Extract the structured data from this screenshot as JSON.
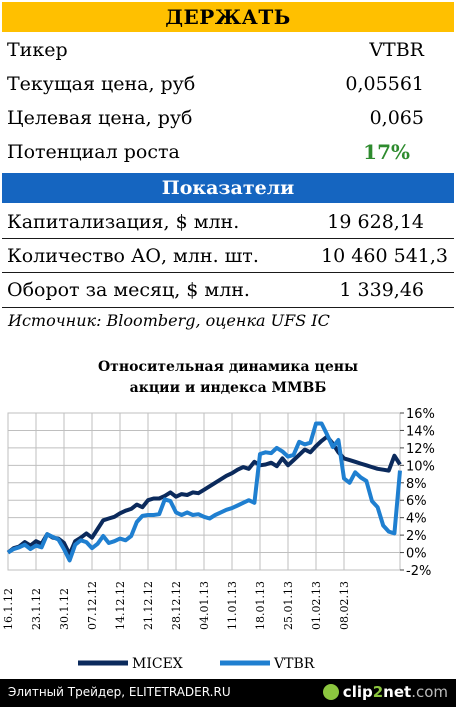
{
  "banner": "ДЕРЖАТЬ",
  "ticker_rows": [
    {
      "label": "Тикер",
      "value": "VTBR"
    },
    {
      "label": "Текущая цена, руб",
      "value": "0,05561"
    },
    {
      "label": "Целевая цена, руб",
      "value": "0,065"
    },
    {
      "label": "Потенциал роста",
      "value": "17%"
    }
  ],
  "indicators_header": "Показатели",
  "indicator_rows": [
    {
      "label": "Капитализация, $ млн.",
      "value": "19 628,14"
    },
    {
      "label": "Количество АО, млн. шт.",
      "value": "10 460 541,3"
    },
    {
      "label": "Оборот за месяц, $ млн.",
      "value": "1 339,46"
    }
  ],
  "source": "Источник: Bloomberg, оценка UFS IC",
  "colors": {
    "banner": "#ffc000",
    "header": "#1565c0",
    "potential": "#2e8b2e",
    "micex": "#0b2a5c",
    "vtbr": "#1f7fd0"
  },
  "chart_data": {
    "type": "line",
    "title_line1": "Относительная динамика цены",
    "title_line2": "акции и индекса ММВБ",
    "x_ticks": [
      "16.1.12",
      "23.1.12",
      "30.1.12",
      "07.12.12",
      "14.12.12",
      "21.12.12",
      "28.12.12",
      "04.01.13",
      "11.01.13",
      "18.01.13",
      "25.01.13",
      "01.02.13",
      "08.02.13"
    ],
    "ylim": [
      -2,
      16
    ],
    "y_ticks": [
      "16%",
      "14%",
      "12%",
      "10%",
      "8%",
      "6%",
      "4%",
      "2%",
      "0%",
      "-2%"
    ],
    "y_tick_values": [
      16,
      14,
      12,
      10,
      8,
      6,
      4,
      2,
      0,
      -2
    ],
    "series": [
      {
        "name": "MICEX",
        "values": [
          0,
          0.5,
          0.7,
          1.2,
          0.8,
          1.3,
          1.0,
          2.1,
          1.7,
          1.6,
          1.1,
          -0.2,
          1.3,
          1.7,
          2.2,
          1.7,
          2.7,
          3.7,
          3.9,
          4.1,
          4.5,
          4.8,
          5.0,
          5.5,
          5.2,
          6.0,
          6.2,
          6.2,
          6.5,
          6.9,
          6.4,
          6.7,
          6.6,
          6.9,
          6.8,
          7.2,
          7.6,
          8.0,
          8.4,
          8.8,
          9.1,
          9.5,
          9.8,
          9.6,
          10.4,
          10.0,
          10.1,
          10.3,
          9.9,
          10.8,
          10.0,
          10.6,
          11.2,
          11.8,
          11.5,
          12.2,
          12.8,
          13.3,
          12.5,
          11.5,
          10.8,
          10.6,
          10.4,
          10.2,
          10.0,
          9.8,
          9.6,
          9.5,
          9.4,
          11.1,
          10.1
        ]
      },
      {
        "name": "VTBR",
        "values": [
          0,
          0.4,
          0.6,
          0.9,
          0.4,
          0.8,
          0.6,
          2.1,
          1.8,
          1.5,
          0.4,
          -0.9,
          0.9,
          1.4,
          1.2,
          0.5,
          1.0,
          1.9,
          1.1,
          1.3,
          1.6,
          1.4,
          1.9,
          3.5,
          4.2,
          4.3,
          4.3,
          4.4,
          6.1,
          5.9,
          4.6,
          4.3,
          4.6,
          4.3,
          4.4,
          4.1,
          3.9,
          4.3,
          4.6,
          4.9,
          5.1,
          5.4,
          5.7,
          6.0,
          5.7,
          11.3,
          11.5,
          11.4,
          12.0,
          11.6,
          11.0,
          11.2,
          12.7,
          12.4,
          12.6,
          14.8,
          14.8,
          13.5,
          12.1,
          12.9,
          8.5,
          8.0,
          9.2,
          8.6,
          8.2,
          5.9,
          5.2,
          3.1,
          2.4,
          2.2,
          9.4
        ]
      }
    ]
  },
  "footer": {
    "text": "Элитный Трейдер, ELITETRADER.RU",
    "logo_a": "clip",
    "logo_b": "2",
    "logo_c": "net",
    "logo_d": ".com"
  }
}
